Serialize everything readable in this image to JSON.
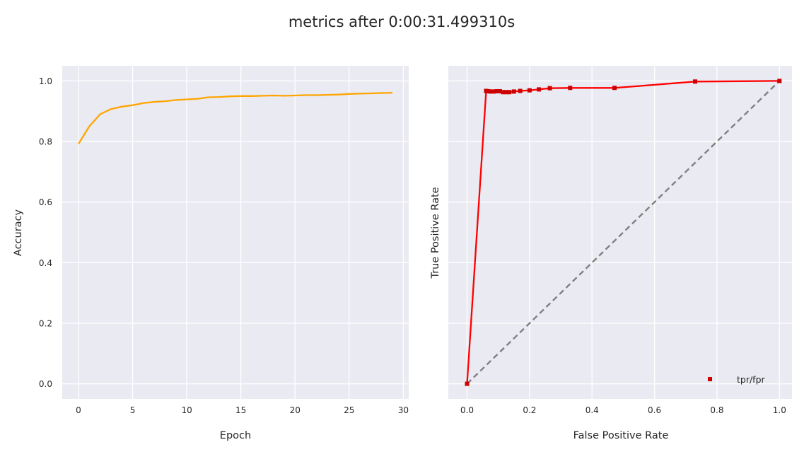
{
  "title": "metrics after 0:00:31.499310s",
  "chart_data": [
    {
      "type": "line",
      "xlabel": "Epoch",
      "ylabel": "Accuracy",
      "xlim": [
        -1.5,
        30.5
      ],
      "ylim": [
        -0.05,
        1.05
      ],
      "xticks": [
        0,
        5,
        10,
        15,
        20,
        25,
        30
      ],
      "xtick_labels": [
        "0",
        "5",
        "10",
        "15",
        "20",
        "25",
        "30"
      ],
      "yticks": [
        0.0,
        0.2,
        0.4,
        0.6,
        0.8,
        1.0
      ],
      "ytick_labels": [
        "0.0",
        "0.2",
        "0.4",
        "0.6",
        "0.8",
        "1.0"
      ],
      "grid": true,
      "series": [
        {
          "color": "#ffa500",
          "x": [
            0,
            1,
            2,
            3,
            4,
            5,
            6,
            7,
            8,
            9,
            10,
            11,
            12,
            13,
            14,
            15,
            16,
            17,
            18,
            19,
            20,
            21,
            22,
            23,
            24,
            25,
            26,
            27,
            28,
            29
          ],
          "y": [
            0.792,
            0.85,
            0.89,
            0.907,
            0.915,
            0.92,
            0.927,
            0.931,
            0.933,
            0.937,
            0.939,
            0.941,
            0.946,
            0.947,
            0.949,
            0.95,
            0.95,
            0.951,
            0.952,
            0.951,
            0.952,
            0.953,
            0.953,
            0.954,
            0.955,
            0.957,
            0.958,
            0.959,
            0.96,
            0.961
          ]
        }
      ]
    },
    {
      "type": "line",
      "xlabel": "False Positive Rate",
      "ylabel": "True Positive Rate",
      "xlim": [
        -0.06,
        1.04
      ],
      "ylim": [
        -0.05,
        1.05
      ],
      "xticks": [
        0.0,
        0.2,
        0.4,
        0.6,
        0.8,
        1.0
      ],
      "xtick_labels": [
        "0.0",
        "0.2",
        "0.4",
        "0.6",
        "0.8",
        "1.0"
      ],
      "yticks": [
        0.0,
        0.2,
        0.4,
        0.6,
        0.8,
        1.0
      ],
      "ytick_labels": [],
      "grid": true,
      "legend_position": "lower-right",
      "series": [
        {
          "name": "tpr/fpr",
          "color": "#ff0000",
          "marker_color": "#cc0000",
          "marker": "square",
          "x": [
            0.0,
            0.061,
            0.068,
            0.075,
            0.085,
            0.095,
            0.105,
            0.115,
            0.125,
            0.135,
            0.15,
            0.17,
            0.2,
            0.23,
            0.265,
            0.33,
            0.472,
            0.73,
            1.0
          ],
          "y": [
            0.0,
            0.967,
            0.966,
            0.965,
            0.965,
            0.966,
            0.966,
            0.963,
            0.963,
            0.963,
            0.965,
            0.967,
            0.969,
            0.972,
            0.976,
            0.977,
            0.977,
            0.998,
            1.0
          ]
        }
      ],
      "reference_line": {
        "x": [
          0,
          1
        ],
        "y": [
          0,
          1
        ],
        "color": "#808080",
        "style": "dashed"
      }
    }
  ]
}
